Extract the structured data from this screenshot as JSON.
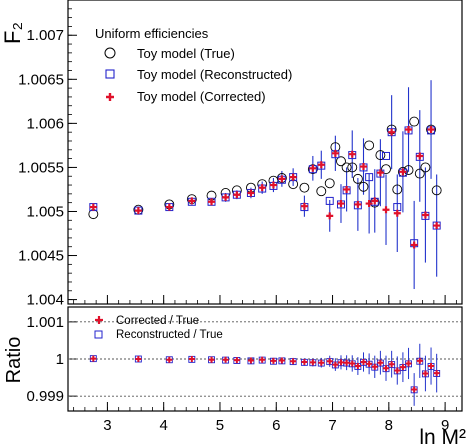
{
  "chart_data": [
    {
      "type": "scatter",
      "title": "",
      "xlabel": "ln M²",
      "ylabel": "F₂",
      "xlim": [
        2.3,
        9.3
      ],
      "ylim": [
        1.00395,
        1.0074
      ],
      "yticks": [
        "1.004",
        "1.0045",
        "1.005",
        "1.0055",
        "1.006",
        "1.0065",
        "1.007"
      ],
      "xticks": [
        "3",
        "4",
        "5",
        "6",
        "7",
        "8",
        "9"
      ],
      "grid": false,
      "legend_position": "top-left",
      "legend_title": "Uniform efficiencies",
      "colors": {
        "true": "#000000",
        "reconstructed": "#2222cc",
        "corrected": "#e0102a",
        "errorbar": "#2233cc"
      },
      "series": [
        {
          "name": "Toy model (True)",
          "marker": "open-circle",
          "x": [
            2.75,
            3.55,
            4.1,
            4.5,
            4.85,
            5.1,
            5.3,
            5.55,
            5.75,
            5.95,
            6.1,
            6.3,
            6.5,
            6.65,
            6.8,
            6.95,
            7.05,
            7.15,
            7.25,
            7.35,
            7.45,
            7.55,
            7.65,
            7.75,
            7.85,
            7.95,
            8.05,
            8.15,
            8.25,
            8.35,
            8.45,
            8.55,
            8.65,
            8.75,
            8.85
          ],
          "y": [
            1.00497,
            1.00502,
            1.00508,
            1.00514,
            1.00518,
            1.00521,
            1.00524,
            1.00527,
            1.00531,
            1.00535,
            1.00538,
            1.00531,
            1.00527,
            1.00548,
            1.00523,
            1.00532,
            1.00573,
            1.00557,
            1.0055,
            1.0055,
            1.00537,
            1.00528,
            1.00575,
            1.0051,
            1.00564,
            1.00548,
            1.00593,
            1.00525,
            1.00545,
            1.00547,
            1.00602,
            1.00543,
            1.0055,
            1.00593,
            1.00524
          ]
        },
        {
          "name": "Toy model (Reconstructed)",
          "marker": "open-square",
          "x": [
            2.75,
            3.55,
            4.1,
            4.5,
            4.85,
            5.1,
            5.3,
            5.55,
            5.75,
            5.95,
            6.1,
            6.3,
            6.5,
            6.65,
            6.8,
            6.95,
            7.05,
            7.15,
            7.25,
            7.35,
            7.45,
            7.55,
            7.65,
            7.75,
            7.85,
            7.95,
            8.05,
            8.15,
            8.25,
            8.35,
            8.45,
            8.55,
            8.65,
            8.75,
            8.85
          ],
          "y": [
            1.00505,
            1.00501,
            1.00505,
            1.00511,
            1.00511,
            1.00516,
            1.00519,
            1.00521,
            1.00526,
            1.00529,
            1.00536,
            1.00539,
            1.00505,
            1.00548,
            1.00552,
            1.00512,
            1.00565,
            1.00508,
            1.00524,
            1.00564,
            1.00507,
            1.0055,
            1.00539,
            1.00511,
            1.00543,
            1.00563,
            1.0059,
            1.00505,
            1.00544,
            1.00592,
            1.00464,
            1.00562,
            1.00495,
            1.00592,
            1.00484
          ]
        },
        {
          "name": "Toy model (Corrected)",
          "marker": "plus",
          "x": [
            2.75,
            3.55,
            4.1,
            4.5,
            4.85,
            5.1,
            5.3,
            5.55,
            5.75,
            5.95,
            6.1,
            6.3,
            6.5,
            6.65,
            6.8,
            6.95,
            7.05,
            7.15,
            7.25,
            7.35,
            7.45,
            7.55,
            7.65,
            7.75,
            7.85,
            7.95,
            8.05,
            8.15,
            8.25,
            8.35,
            8.45,
            8.55,
            8.65,
            8.75,
            8.85
          ],
          "y": [
            1.00505,
            1.00501,
            1.00505,
            1.00512,
            1.00511,
            1.00516,
            1.00519,
            1.00521,
            1.00527,
            1.0053,
            1.00537,
            1.00539,
            1.00506,
            1.00549,
            1.00553,
            1.00495,
            1.00566,
            1.00509,
            1.00525,
            1.00565,
            1.00508,
            1.00551,
            1.00509,
            1.00512,
            1.00544,
            1.00502,
            1.0059,
            1.00498,
            1.00545,
            1.00593,
            1.00462,
            1.00563,
            1.00496,
            1.00593,
            1.00484
          ],
          "yerr": [
            3e-05,
            3e-05,
            4e-05,
            4e-05,
            4e-05,
            5e-05,
            5e-05,
            6e-05,
            7e-05,
            8e-05,
            9e-05,
            0.0001,
            0.00012,
            0.00014,
            0.00016,
            0.00018,
            0.0002,
            0.00022,
            0.00025,
            0.00027,
            0.0003,
            0.00032,
            0.00034,
            0.00036,
            0.00038,
            0.0004,
            0.00042,
            0.00044,
            0.00046,
            0.00048,
            0.0005,
            0.00052,
            0.00054,
            0.00056,
            0.00058
          ]
        }
      ]
    },
    {
      "type": "scatter",
      "title": "",
      "xlabel": "ln M²",
      "ylabel": "Ratio",
      "xlim": [
        2.3,
        9.3
      ],
      "ylim": [
        0.9986,
        1.0014
      ],
      "yticks": [
        "0.999",
        "1",
        "1.001"
      ],
      "xticks": [
        "3",
        "4",
        "5",
        "6",
        "7",
        "8",
        "9"
      ],
      "reference_lines": [
        0.999,
        1.0,
        1.001
      ],
      "legend_position": "top-left",
      "series": [
        {
          "name": "Corrected / True",
          "marker": "plus",
          "x": [
            2.75,
            3.55,
            4.1,
            4.5,
            4.85,
            5.1,
            5.3,
            5.55,
            5.75,
            5.95,
            6.1,
            6.3,
            6.5,
            6.65,
            6.8,
            6.95,
            7.05,
            7.15,
            7.25,
            7.35,
            7.45,
            7.55,
            7.65,
            7.75,
            7.85,
            7.95,
            8.05,
            8.15,
            8.25,
            8.35,
            8.45,
            8.55,
            8.65,
            8.75,
            8.85
          ],
          "y": [
            1.00001,
            1.0,
            0.99998,
            1.0,
            0.99998,
            0.99998,
            0.99997,
            0.99996,
            0.99998,
            0.99995,
            0.99996,
            0.99994,
            0.99992,
            0.99991,
            0.9999,
            0.99994,
            0.99985,
            0.99991,
            0.9999,
            0.99988,
            0.99981,
            0.99992,
            0.99987,
            0.99979,
            0.9999,
            0.99975,
            0.99986,
            0.99969,
            0.99978,
            0.99988,
            0.99918,
            0.99995,
            0.99961,
            0.99981,
            0.99962
          ],
          "yerr": [
            2e-05,
            2e-05,
            3e-05,
            3e-05,
            4e-05,
            4e-05,
            5e-05,
            5e-05,
            6e-05,
            7e-05,
            8e-05,
            9e-05,
            0.0001,
            0.00011,
            0.00013,
            0.00015,
            0.00017,
            0.00019,
            0.0002,
            0.00022,
            0.00024,
            0.00026,
            0.00028,
            0.0003,
            0.00032,
            0.00034,
            0.00036,
            0.00038,
            0.0004,
            0.00042,
            0.00044,
            0.00046,
            0.00048,
            0.0005,
            0.00052
          ]
        },
        {
          "name": "Reconstructed / True",
          "marker": "open-square",
          "x": [
            2.75,
            3.55,
            4.1,
            4.5,
            4.85,
            5.1,
            5.3,
            5.55,
            5.75,
            5.95,
            6.1,
            6.3,
            6.5,
            6.65,
            6.8,
            6.95,
            7.05,
            7.15,
            7.25,
            7.35,
            7.45,
            7.55,
            7.65,
            7.75,
            7.85,
            7.95,
            8.05,
            8.15,
            8.25,
            8.35,
            8.45,
            8.55,
            8.65,
            8.75,
            8.85
          ],
          "y": [
            1.00001,
            1.0,
            0.99998,
            0.99999,
            0.99998,
            0.99997,
            0.99996,
            0.99995,
            0.99997,
            0.99994,
            0.99995,
            0.99993,
            0.99991,
            0.9999,
            0.99989,
            0.99993,
            0.99984,
            0.9999,
            0.99989,
            0.99987,
            0.9998,
            0.99991,
            0.99986,
            0.99978,
            0.99989,
            0.99974,
            0.99985,
            0.99968,
            0.99977,
            0.99987,
            0.99917,
            0.99994,
            0.9996,
            0.9998,
            0.99961
          ]
        }
      ]
    }
  ]
}
